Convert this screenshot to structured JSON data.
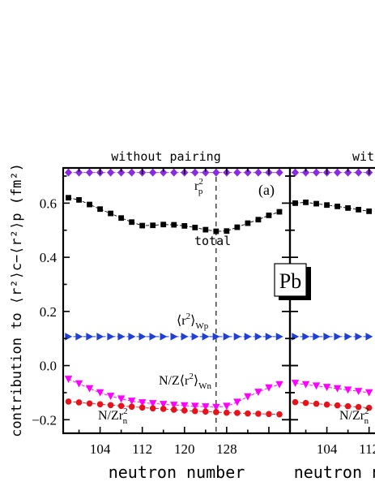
{
  "chart_data": [
    {
      "type": "line",
      "panel_title": "without pairing",
      "panel_tag": "(a)",
      "nucleus": "Pb",
      "xlabel": "neutron number",
      "ylabel": "contribution to ⟨r²⟩c−⟨r²⟩p (fm²)",
      "xlim": [
        97,
        140
      ],
      "ylim": [
        -0.25,
        0.73
      ],
      "xticks": [
        104,
        112,
        120,
        128
      ],
      "yticks": [
        -0.2,
        0.0,
        0.2,
        0.4,
        0.6
      ],
      "ytick_labels": [
        "−0.2",
        "0.0",
        "0.2",
        "0.4",
        "0.6"
      ],
      "vline_x": 126,
      "x": [
        98,
        100,
        102,
        104,
        106,
        108,
        110,
        112,
        114,
        116,
        118,
        120,
        122,
        124,
        126,
        128,
        130,
        132,
        134,
        136,
        138
      ],
      "series": [
        {
          "key": "rp2",
          "label": "r",
          "label_sup": "2",
          "label_sub": "p",
          "color": "#8a2be2",
          "marker": "diamond",
          "values": [
            0.713,
            0.713,
            0.713,
            0.713,
            0.713,
            0.713,
            0.713,
            0.713,
            0.713,
            0.713,
            0.713,
            0.713,
            0.713,
            0.713,
            0.713,
            0.713,
            0.713,
            0.713,
            0.713,
            0.713,
            0.713
          ]
        },
        {
          "key": "total",
          "label": "total",
          "color": "#000000",
          "marker": "square",
          "values": [
            0.62,
            0.612,
            0.595,
            0.578,
            0.562,
            0.545,
            0.53,
            0.517,
            0.518,
            0.521,
            0.52,
            0.516,
            0.51,
            0.502,
            0.496,
            0.497,
            0.511,
            0.526,
            0.539,
            0.555,
            0.568
          ]
        },
        {
          "key": "wp",
          "label": "⟨r",
          "label_sup": "2",
          "label_tail": "⟩",
          "label_sub": "Wp",
          "color": "#1f3fd8",
          "marker": "triangle-right",
          "values": [
            0.107,
            0.107,
            0.107,
            0.107,
            0.107,
            0.107,
            0.107,
            0.107,
            0.107,
            0.107,
            0.107,
            0.107,
            0.107,
            0.107,
            0.107,
            0.107,
            0.107,
            0.107,
            0.107,
            0.107,
            0.107
          ]
        },
        {
          "key": "wn",
          "label": "N/Z⟨r",
          "label_sup": "2",
          "label_tail": "⟩",
          "label_sub": "Wn",
          "color": "#ff00ff",
          "marker": "triangle-down",
          "values": [
            -0.05,
            -0.067,
            -0.085,
            -0.1,
            -0.113,
            -0.123,
            -0.131,
            -0.137,
            -0.14,
            -0.143,
            -0.146,
            -0.148,
            -0.15,
            -0.152,
            -0.154,
            -0.15,
            -0.135,
            -0.115,
            -0.098,
            -0.082,
            -0.07
          ]
        },
        {
          "key": "nz_rn2",
          "label": "N/Zr",
          "label_sup": "2",
          "label_sub": "n",
          "color": "#e8121a",
          "marker": "circle",
          "values": [
            -0.133,
            -0.136,
            -0.14,
            -0.143,
            -0.146,
            -0.149,
            -0.152,
            -0.155,
            -0.158,
            -0.16,
            -0.163,
            -0.166,
            -0.168,
            -0.17,
            -0.172,
            -0.174,
            -0.175,
            -0.177,
            -0.178,
            -0.179,
            -0.18
          ]
        }
      ]
    },
    {
      "type": "line",
      "panel_title": "with pairing",
      "xlabel": "neutron number",
      "xlim": [
        97,
        140
      ],
      "ylim": [
        -0.25,
        0.73
      ],
      "xticks": [
        104,
        112
      ],
      "x": [
        98,
        100,
        102,
        104,
        106,
        108,
        110,
        112
      ],
      "series": [
        {
          "key": "rp2",
          "color": "#8a2be2",
          "marker": "diamond",
          "values": [
            0.713,
            0.713,
            0.713,
            0.713,
            0.713,
            0.713,
            0.713,
            0.713
          ]
        },
        {
          "key": "total",
          "color": "#000000",
          "marker": "square",
          "values": [
            0.6,
            0.603,
            0.598,
            0.593,
            0.588,
            0.582,
            0.576,
            0.57
          ]
        },
        {
          "key": "wp",
          "color": "#1f3fd8",
          "marker": "triangle-right",
          "values": [
            0.107,
            0.107,
            0.107,
            0.107,
            0.107,
            0.107,
            0.107,
            0.107
          ]
        },
        {
          "key": "wn",
          "color": "#ff00ff",
          "marker": "triangle-down",
          "values": [
            -0.065,
            -0.07,
            -0.075,
            -0.08,
            -0.085,
            -0.09,
            -0.095,
            -0.1
          ]
        },
        {
          "key": "nz_rn2",
          "color": "#e8121a",
          "marker": "circle",
          "values": [
            -0.135,
            -0.138,
            -0.141,
            -0.144,
            -0.147,
            -0.15,
            -0.153,
            -0.156
          ],
          "label": "N/Zr",
          "label_sup": "2",
          "label_sub": "n"
        }
      ]
    }
  ]
}
